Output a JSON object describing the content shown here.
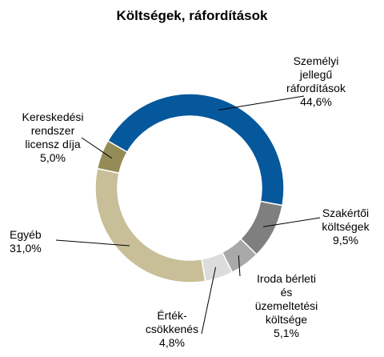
{
  "chart_data": {
    "type": "donut",
    "title": "Költségek, ráfordítások",
    "categories": [
      "Személyi\njellegű\nráfordítások",
      "Szakértői\nköltségek",
      "Iroda bérleti\nés\nüzemeltetési\nköltsége",
      "Érték-\ncsökkenés",
      "Egyéb",
      "Kereskedési\nrendszer\nlicensz díja"
    ],
    "values": [
      44.6,
      9.5,
      5.1,
      4.8,
      31.0,
      5.0
    ],
    "value_labels": [
      "44,6%",
      "9,5%",
      "5,1%",
      "4,8%",
      "31,0%",
      "5,0%"
    ],
    "colors": [
      "#06589c",
      "#7f7f7f",
      "#a9a9a9",
      "#dcdcdc",
      "#c8bf98",
      "#958b57"
    ]
  }
}
